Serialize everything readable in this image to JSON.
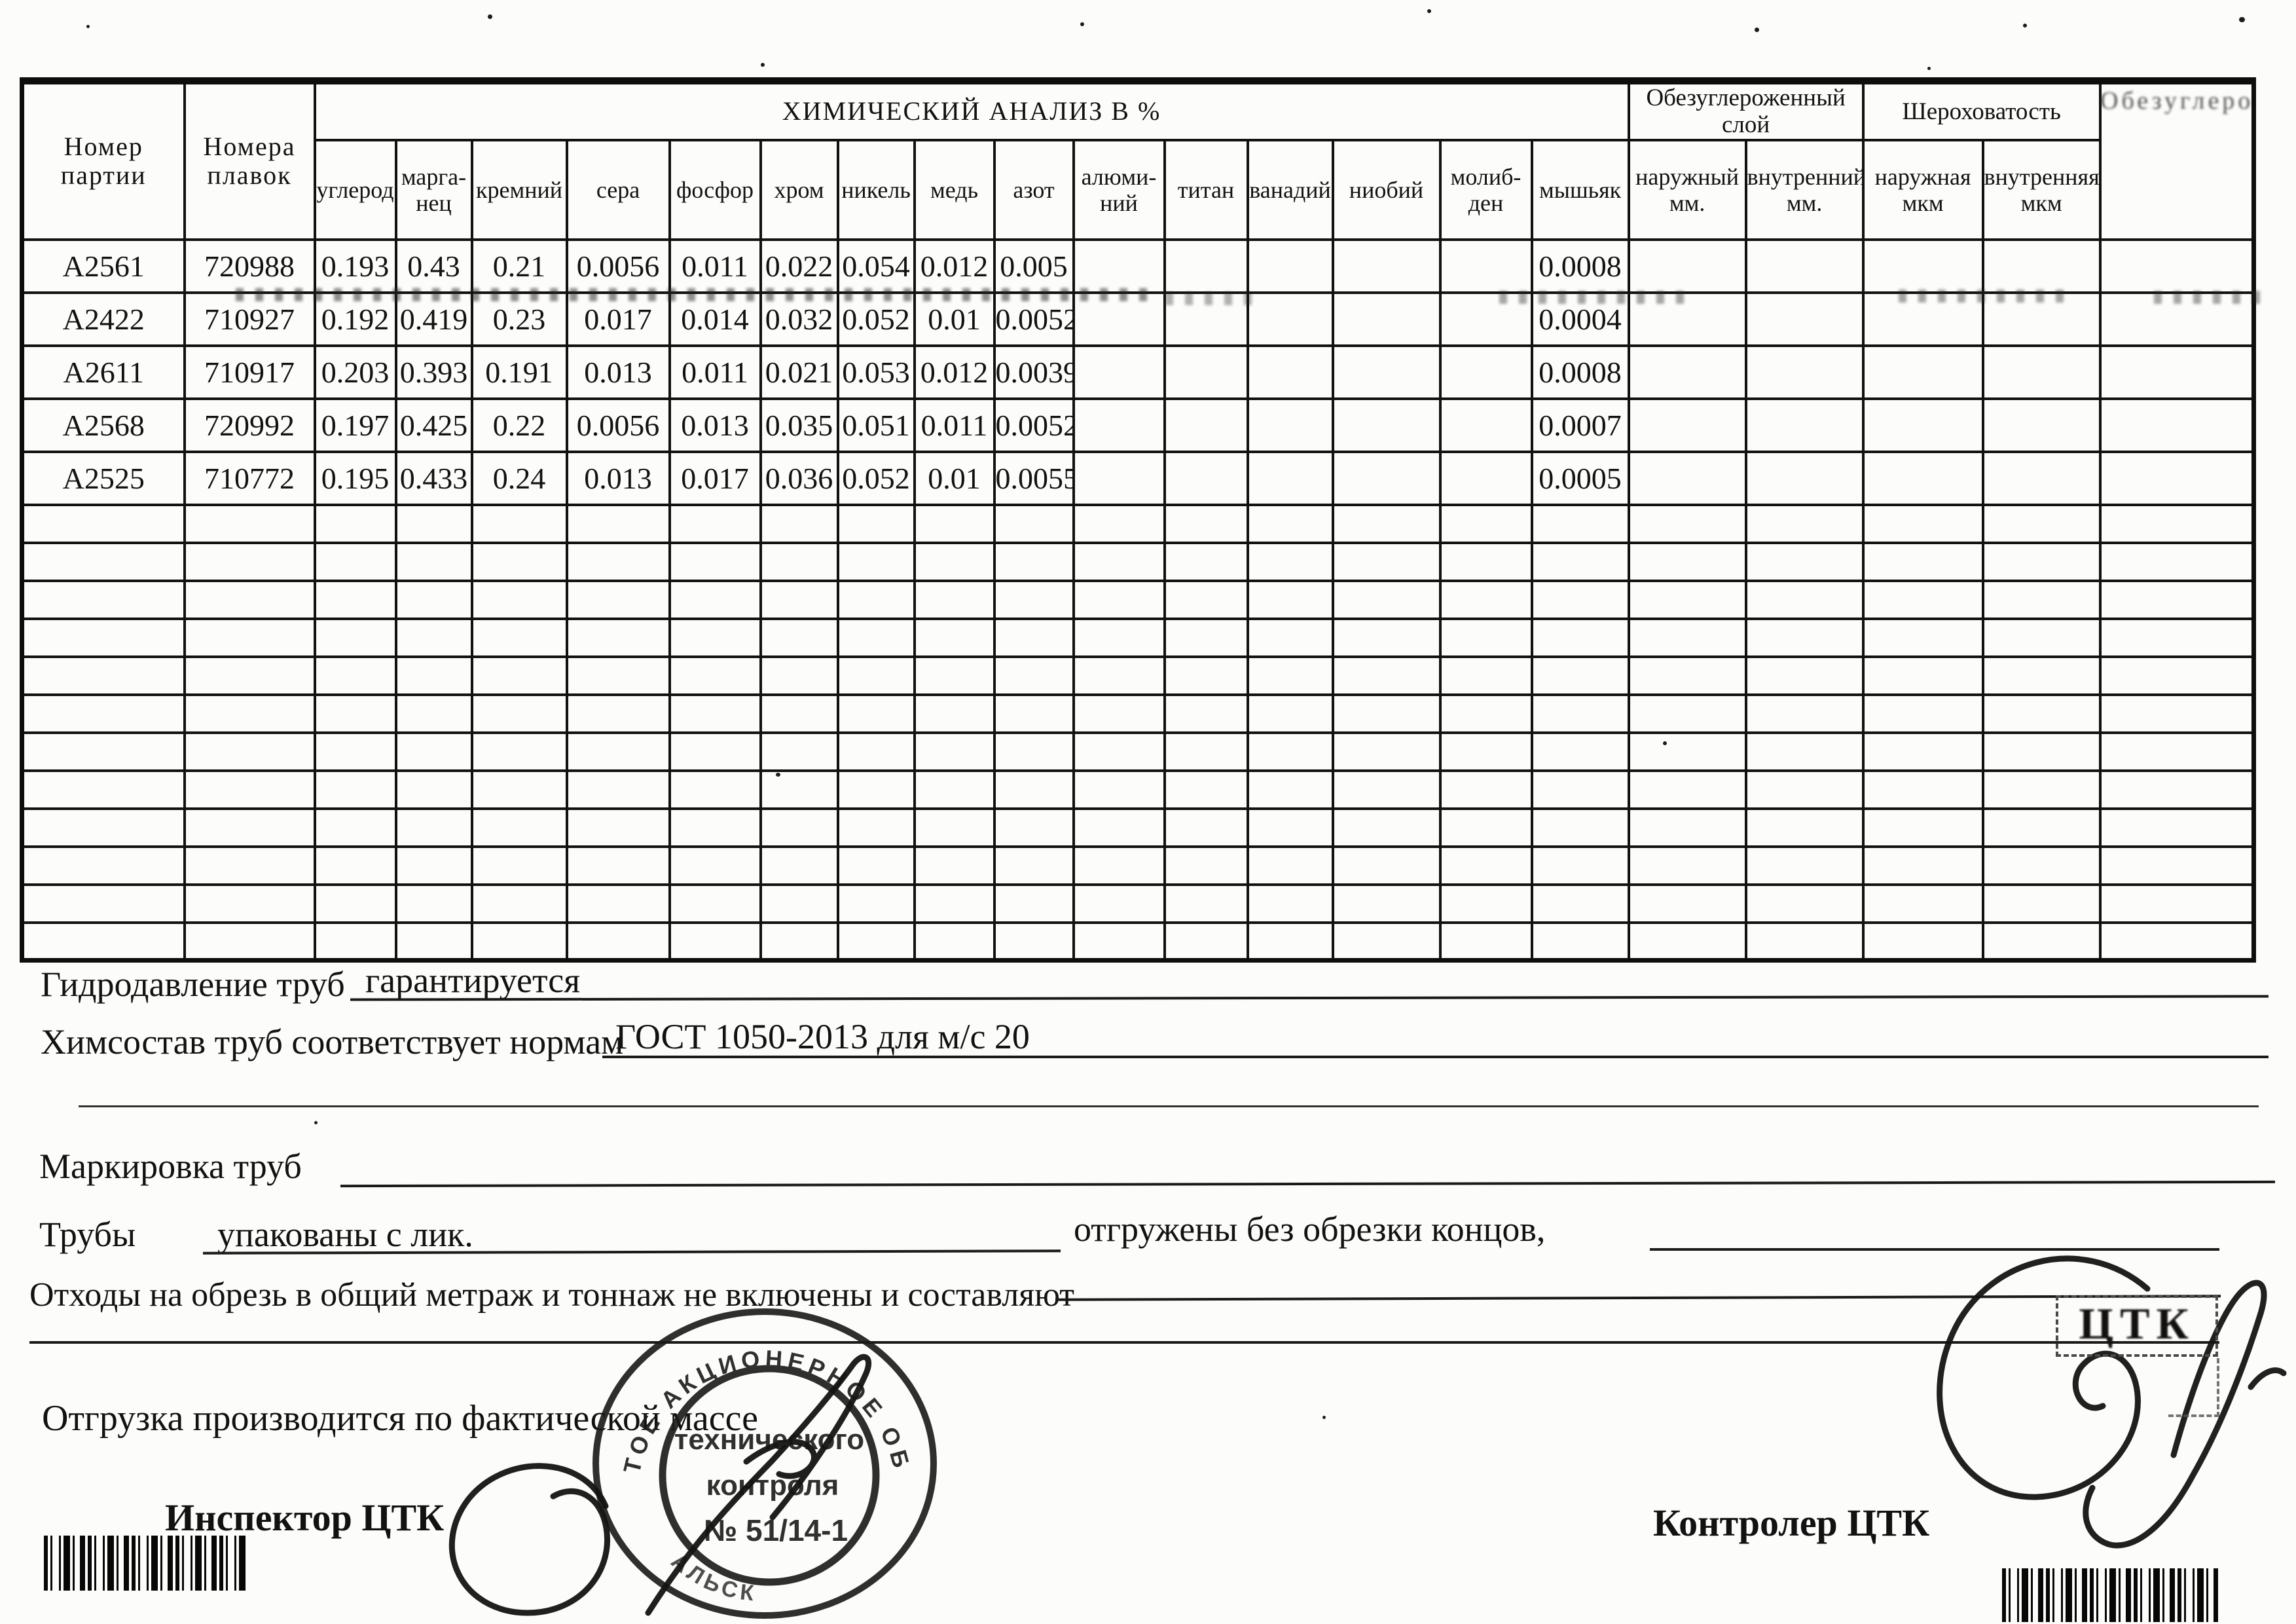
{
  "table": {
    "title": "ХИМИЧЕСКИЙ АНАЛИЗ  В  %",
    "col_batch": "Номер\nпартии",
    "col_heats": "Номера\nплавок",
    "chem_columns": [
      "углерод",
      "марга-\nнец",
      "кремний",
      "сера",
      "фосфор",
      "хром",
      "никель",
      "медь",
      "азот",
      "алюми-\nний",
      "титан",
      "ванадий",
      "ниобий",
      "молиб-\nден",
      "мышьяк"
    ],
    "decarb_group": "Обезуглероженный\nслой",
    "decarb_columns": [
      "наружный\nмм.",
      "внутренний\nмм."
    ],
    "rough_group": "Шероховатость",
    "rough_columns": [
      "наружная\nмкм",
      "внутренняя\nмкм"
    ],
    "rows": [
      {
        "batch": "А2561",
        "heat": "720988",
        "values": [
          "0.193",
          "0.43",
          "0.21",
          "0.0056",
          "0.011",
          "0.022",
          "0.054",
          "0.012",
          "0.005",
          "",
          "",
          "",
          "",
          "",
          "0.0008"
        ],
        "decarb": [
          "",
          ""
        ],
        "rough": [
          "",
          ""
        ]
      },
      {
        "batch": "А2422",
        "heat": "710927",
        "values": [
          "0.192",
          "0.419",
          "0.23",
          "0.017",
          "0.014",
          "0.032",
          "0.052",
          "0.01",
          "0.0052",
          "",
          "",
          "",
          "",
          "",
          "0.0004"
        ],
        "decarb": [
          "",
          ""
        ],
        "rough": [
          "",
          ""
        ]
      },
      {
        "batch": "А2611",
        "heat": "710917",
        "values": [
          "0.203",
          "0.393",
          "0.191",
          "0.013",
          "0.011",
          "0.021",
          "0.053",
          "0.012",
          "0.0039",
          "",
          "",
          "",
          "",
          "",
          "0.0008"
        ],
        "decarb": [
          "",
          ""
        ],
        "rough": [
          "",
          ""
        ]
      },
      {
        "batch": "А2568",
        "heat": "720992",
        "values": [
          "0.197",
          "0.425",
          "0.22",
          "0.0056",
          "0.013",
          "0.035",
          "0.051",
          "0.011",
          "0.0052",
          "",
          "",
          "",
          "",
          "",
          "0.0007"
        ],
        "decarb": [
          "",
          ""
        ],
        "rough": [
          "",
          ""
        ]
      },
      {
        "batch": "А2525",
        "heat": "710772",
        "values": [
          "0.195",
          "0.433",
          "0.24",
          "0.013",
          "0.017",
          "0.036",
          "0.052",
          "0.01",
          "0.0055",
          "",
          "",
          "",
          "",
          "",
          "0.0005"
        ],
        "decarb": [
          "",
          ""
        ],
        "rough": [
          "",
          ""
        ]
      }
    ],
    "empty_row_count": 12
  },
  "cut_note": "Обезуглеро",
  "fields": {
    "hydro": {
      "label": "Гидродавление труб",
      "value": "гарантируется"
    },
    "chem": {
      "label": "Химсостав труб соответствует нормам",
      "value": "ГОСТ 1050-2013 для м/с 20"
    },
    "marking": {
      "label": "Маркировка труб",
      "value": ""
    },
    "pipes": {
      "label": "Трубы",
      "value": "упакованы с лик.",
      "note": "отгружены без обрезки концов,"
    },
    "waste": {
      "label": "Отходы на обрезь в общий метраж и тоннаж не включены и составляют",
      "value": ""
    },
    "shipping": {
      "label": "Отгрузка производится по фактической массе",
      "value": ""
    }
  },
  "signatures": {
    "inspector_label": "Инспектор ЦТК",
    "controller_label": "Контролер ЦТК"
  },
  "stamp": {
    "arc_top": "ТОЕ  АКЦИОНЕРНОЕ  ОБЩЕС",
    "arc_bottom": "АЛЬСК",
    "line1": "технического",
    "line2": "контроля",
    "line3": "№ 51/14-1"
  },
  "ctk_box_text": "ЦТК"
}
